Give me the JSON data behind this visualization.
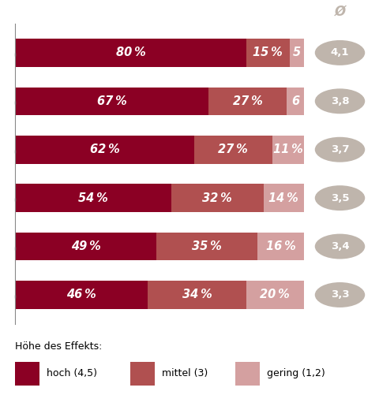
{
  "bars": [
    {
      "hoch": 80,
      "mittel": 15,
      "gering": 5,
      "avg": "4,1"
    },
    {
      "hoch": 67,
      "mittel": 27,
      "gering": 6,
      "avg": "3,8"
    },
    {
      "hoch": 62,
      "mittel": 27,
      "gering": 11,
      "avg": "3,7"
    },
    {
      "hoch": 54,
      "mittel": 32,
      "gering": 14,
      "avg": "3,5"
    },
    {
      "hoch": 49,
      "mittel": 35,
      "gering": 16,
      "avg": "3,4"
    },
    {
      "hoch": 46,
      "mittel": 34,
      "gering": 20,
      "avg": "3,3"
    }
  ],
  "color_hoch": "#8B0024",
  "color_mittel": "#B05050",
  "color_gering": "#D4A0A0",
  "color_avg_bg": "#BFB5AC",
  "bar_height": 0.58,
  "legend_label_hoch": "hoch (4,5)",
  "legend_label_mittel": "mittel (3)",
  "legend_label_gering": "gering (1,2)",
  "legend_title": "Höhe des Effekts:",
  "avg_symbol": "Ø",
  "background_color": "#FFFFFF",
  "spine_color": "#888888"
}
